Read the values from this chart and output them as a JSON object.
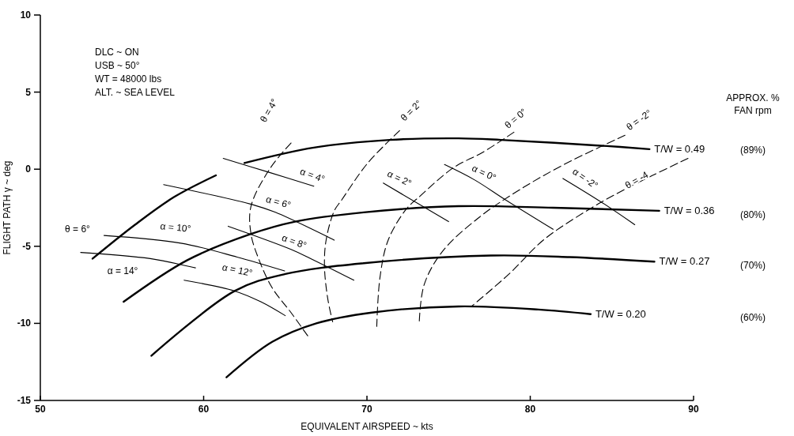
{
  "chart_data": {
    "type": "line",
    "xlabel": "EQUIVALENT AIRSPEED ~ kts",
    "ylabel": "FLIGHT PATH γ ~ deg",
    "xlim": [
      50,
      90
    ],
    "xticks": [
      50,
      60,
      70,
      80,
      90
    ],
    "ylim": [
      -15,
      10
    ],
    "yticks": [
      -15,
      -10,
      -5,
      0,
      5,
      10
    ],
    "grid": false,
    "marker": "none",
    "series": [
      {
        "color": "#000000",
        "x": [
          53.2,
          55.8,
          58.2,
          60.75
        ],
        "values": [
          -5.8,
          -3.6,
          -1.8,
          -0.4
        ]
      },
      {
        "name": "T/W = 0.49",
        "color": "#000000",
        "x": [
          62.5,
          66.75,
          71.4,
          75.6,
          78.2,
          84.7,
          87.3
        ],
        "values": [
          0.4,
          1.4,
          1.9,
          2.0,
          1.9,
          1.5,
          1.3
        ]
      },
      {
        "name": "T/W = 0.36",
        "color": "#000000",
        "x": [
          55.1,
          59.0,
          62.9,
          65.6,
          69.8,
          75.6,
          81.4,
          87.9
        ],
        "values": [
          -8.6,
          -5.9,
          -4.2,
          -3.4,
          -2.8,
          -2.4,
          -2.5,
          -2.7
        ]
      },
      {
        "name": "T/W = 0.27",
        "color": "#000000",
        "x": [
          56.8,
          61.9,
          65.0,
          69.8,
          77.6,
          82.4,
          87.6
        ],
        "values": [
          -12.1,
          -7.9,
          -6.8,
          -6.1,
          -5.6,
          -5.7,
          -6.0
        ]
      },
      {
        "name": "T/W = 0.20",
        "color": "#000000",
        "x": [
          61.4,
          64.2,
          66.9,
          70.3,
          75.6,
          80.5,
          83.7
        ],
        "values": [
          -13.5,
          -11.2,
          -10.0,
          -9.3,
          -8.9,
          -9.1,
          -9.4
        ]
      },
      {
        "color": "#000000",
        "line_style": "dashed",
        "x": [
          65.35,
          64.1,
          62.9,
          62.9,
          63.4,
          64.2,
          65.35,
          66.5
        ],
        "values": [
          1.7,
          0.1,
          -2.4,
          -4.2,
          -5.9,
          -7.7,
          -9.3,
          -11.0
        ]
      },
      {
        "color": "#000000",
        "line_style": "dashed",
        "x": [
          72.0,
          70.05,
          68.45,
          68.0,
          67.5,
          67.4,
          67.6,
          67.9
        ],
        "values": [
          2.5,
          0.4,
          -2.0,
          -2.7,
          -4.6,
          -6.3,
          -8.4,
          -9.9
        ]
      },
      {
        "color": "#000000",
        "line_style": "dashed",
        "x": [
          79.0,
          77.1,
          75.3,
          73.3,
          72.4,
          71.3,
          70.8,
          70.6
        ],
        "values": [
          2.4,
          1.1,
          0.1,
          -1.7,
          -2.6,
          -4.6,
          -7.0,
          -10.2
        ]
      },
      {
        "color": "#000000",
        "line_style": "dashed",
        "x": [
          85.8,
          82.06,
          79.25,
          76.9,
          74.65,
          73.5,
          73.2
        ],
        "values": [
          2.2,
          0.3,
          -1.4,
          -3.1,
          -5.3,
          -7.5,
          -10.0
        ]
      },
      {
        "color": "#000000",
        "line_style": "dashed",
        "x": [
          89.66,
          85.8,
          83.3,
          80.8,
          78.7,
          76.4
        ],
        "values": [
          0.7,
          -1.3,
          -2.8,
          -4.6,
          -6.8,
          -8.9
        ]
      },
      {
        "color": "#000000",
        "line_style": "solid",
        "x": [
          52.47,
          56.73,
          59.5
        ],
        "values": [
          -5.4,
          -5.8,
          -6.4
        ]
      },
      {
        "color": "#000000",
        "line_style": "solid",
        "x": [
          58.8,
          61.9,
          63.5,
          65.0
        ],
        "values": [
          -7.2,
          -7.9,
          -8.6,
          -9.5
        ]
      },
      {
        "color": "#000000",
        "line_style": "solid",
        "x": [
          53.9,
          58.6,
          62.05,
          64.96
        ],
        "values": [
          -4.3,
          -4.8,
          -5.7,
          -6.6
        ]
      },
      {
        "color": "#000000",
        "line_style": "solid",
        "x": [
          61.5,
          65.35,
          66.56,
          69.2
        ],
        "values": [
          -3.7,
          -5.2,
          -5.8,
          -7.2
        ]
      },
      {
        "color": "#000000",
        "line_style": "solid",
        "x": [
          57.55,
          63.0,
          64.4,
          68.0
        ],
        "values": [
          -1.0,
          -2.3,
          -2.8,
          -4.6
        ]
      },
      {
        "color": "#000000",
        "line_style": "solid",
        "x": [
          61.2,
          64.0,
          66.75
        ],
        "values": [
          0.7,
          -0.2,
          -1.1
        ]
      },
      {
        "color": "#000000",
        "line_style": "solid",
        "x": [
          71.0,
          75.0
        ],
        "values": [
          -0.9,
          -3.4
        ]
      },
      {
        "color": "#000000",
        "line_style": "solid",
        "x": [
          74.75,
          76.6,
          78.5,
          81.4
        ],
        "values": [
          0.3,
          -0.7,
          -2.0,
          -3.9
        ]
      },
      {
        "color": "#000000",
        "line_style": "solid",
        "x": [
          82.0,
          84.3,
          86.4
        ],
        "values": [
          -0.6,
          -2.1,
          -3.6
        ]
      }
    ],
    "annotations": [
      "DLC ~ ON",
      "USB ~ 50°",
      "WT = 48000 lbs",
      "ALT. ~ SEA LEVEL",
      "APPROX. %\nFAN rpm",
      "(89%)",
      "(80%)",
      "(70%)",
      "(60%)",
      "θ = 4°",
      "θ = 2°",
      "θ = 0°",
      "θ = -2°",
      "θ = -4",
      "θ = 6°",
      "α = 4°",
      "α = 6°",
      "α = 8°",
      "α = 10°",
      "α = 12°",
      "α = 14°",
      "α = 2°",
      "α = 0°",
      "α = -2°"
    ]
  }
}
